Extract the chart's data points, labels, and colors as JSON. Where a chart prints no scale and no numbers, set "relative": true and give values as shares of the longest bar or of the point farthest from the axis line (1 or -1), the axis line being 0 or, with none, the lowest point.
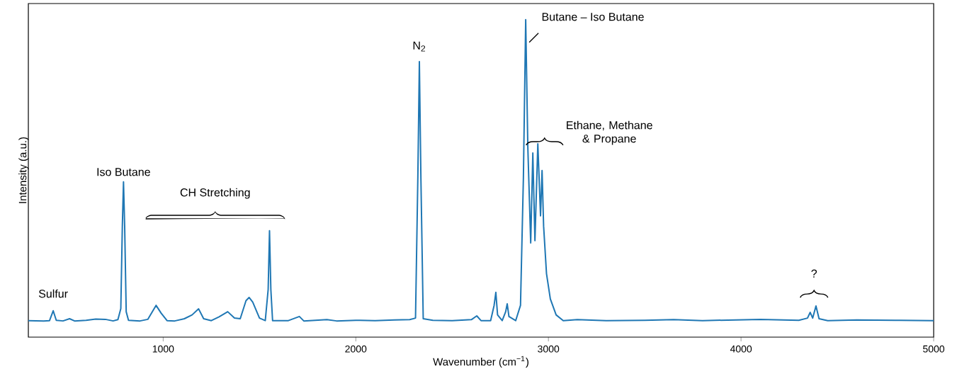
{
  "chart_data": {
    "type": "line",
    "relative": true,
    "xlabel": "Wavenumber (cm$^{−1}$)",
    "ylabel": "Intensity (a.u.)",
    "xlim": [
      300,
      5000
    ],
    "xticks": [
      1000,
      2000,
      3000,
      4000,
      5000
    ],
    "x": [
      300,
      380,
      410,
      429,
      445,
      480,
      514,
      540,
      600,
      650,
      700,
      740,
      765,
      780,
      788,
      794,
      800,
      808,
      820,
      880,
      920,
      963,
      990,
      1020,
      1060,
      1110,
      1150,
      1184,
      1210,
      1250,
      1290,
      1335,
      1370,
      1400,
      1430,
      1446,
      1465,
      1500,
      1530,
      1545,
      1552,
      1559,
      1568,
      1650,
      1707,
      1730,
      1850,
      1900,
      2000,
      2100,
      2200,
      2280,
      2310,
      2322,
      2330,
      2338,
      2350,
      2400,
      2500,
      2600,
      2628,
      2650,
      2700,
      2718,
      2727,
      2736,
      2760,
      2778,
      2786,
      2795,
      2830,
      2855,
      2870,
      2882,
      2893,
      2908,
      2919,
      2930,
      2945,
      2959,
      2967,
      2975,
      2990,
      3010,
      3040,
      3077,
      3150,
      3300,
      3500,
      3650,
      3800,
      4100,
      4300,
      4345,
      4359,
      4372,
      4389,
      4405,
      4450,
      4600,
      4800,
      5000
    ],
    "series": [
      {
        "color": "#1f77b4",
        "values": [
          0.052,
          0.051,
          0.052,
          0.083,
          0.053,
          0.051,
          0.058,
          0.051,
          0.053,
          0.057,
          0.056,
          0.051,
          0.055,
          0.09,
          0.35,
          0.489,
          0.35,
          0.08,
          0.053,
          0.051,
          0.056,
          0.1,
          0.075,
          0.052,
          0.051,
          0.058,
          0.07,
          0.089,
          0.058,
          0.052,
          0.064,
          0.08,
          0.06,
          0.058,
          0.115,
          0.125,
          0.11,
          0.06,
          0.052,
          0.15,
          0.335,
          0.15,
          0.052,
          0.052,
          0.065,
          0.051,
          0.055,
          0.051,
          0.053,
          0.052,
          0.054,
          0.055,
          0.06,
          0.5,
          0.868,
          0.5,
          0.058,
          0.053,
          0.052,
          0.055,
          0.067,
          0.052,
          0.052,
          0.1,
          0.141,
          0.07,
          0.052,
          0.08,
          0.105,
          0.065,
          0.052,
          0.1,
          0.5,
          1,
          0.6,
          0.297,
          0.58,
          0.304,
          0.609,
          0.382,
          0.525,
          0.35,
          0.2,
          0.12,
          0.07,
          0.052,
          0.055,
          0.052,
          0.053,
          0.055,
          0.052,
          0.056,
          0.053,
          0.06,
          0.078,
          0.06,
          0.098,
          0.058,
          0.052,
          0.054,
          0.053,
          0.052
        ]
      }
    ],
    "annotations": [
      {
        "text": "Sulfur",
        "x": 429,
        "y": 0.083
      },
      {
        "text": "Iso Butane",
        "x": 794,
        "y": 0.489
      },
      "CH Stretching",
      {
        "text": "N$_{2}$",
        "x": 2330,
        "y": 0.868
      },
      {
        "text": "Butane – Iso Butane",
        "x": 2882,
        "y": 1
      },
      "Ethane, Methane & Propane",
      "?"
    ]
  }
}
